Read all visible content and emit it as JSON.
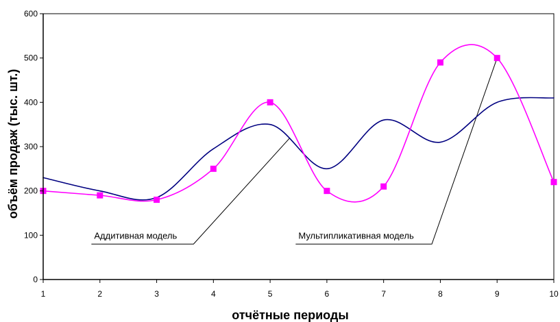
{
  "chart_data": {
    "type": "line",
    "title": "",
    "xlabel": "отчётные периоды",
    "ylabel": "объём продаж (тыс. шт.)",
    "x": [
      1,
      2,
      3,
      4,
      5,
      6,
      7,
      8,
      9,
      10
    ],
    "xlim": [
      1,
      10
    ],
    "ylim": [
      0,
      600
    ],
    "y_ticks": [
      0,
      100,
      200,
      300,
      400,
      500,
      600
    ],
    "x_ticks": [
      1,
      2,
      3,
      4,
      5,
      6,
      7,
      8,
      9,
      10
    ],
    "grid": false,
    "legend": "none",
    "series": [
      {
        "values": [
          230,
          200,
          185,
          295,
          350,
          250,
          360,
          310,
          400,
          410
        ],
        "color": "#000080",
        "marker": "none",
        "smooth": true
      },
      {
        "values": [
          200,
          190,
          180,
          250,
          400,
          200,
          210,
          490,
          500,
          220
        ],
        "color": "#ff00ff",
        "marker": "square",
        "marker_color": "#ff00ff",
        "smooth": true
      }
    ],
    "annotations": [
      {
        "text": "Аддитивная модель",
        "line_points": [
          [
            1.85,
            80
          ],
          [
            3.65,
            80
          ],
          [
            5.35,
            320
          ]
        ]
      },
      {
        "text": "Мультипликативная модель",
        "line_points": [
          [
            5.45,
            80
          ],
          [
            7.85,
            80
          ],
          [
            9.0,
            500
          ]
        ]
      }
    ]
  }
}
